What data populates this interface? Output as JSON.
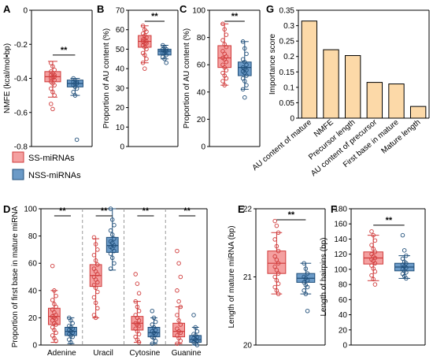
{
  "colors": {
    "ss_fill": "#f4a0a0",
    "ss_edge": "#d03a3a",
    "nss_fill": "#6b9ac7",
    "nss_edge": "#1f4e79",
    "bar_fill": "#fcd9a8",
    "axis": "#000000",
    "dash": "#999999"
  },
  "legend": {
    "ss_label": "SS-miRNAs",
    "nss_label": "NSS-miRNAs"
  },
  "chart_data": [
    {
      "panel": "A",
      "type": "box",
      "ylabel": "NMFE (kcal/mol•bp)",
      "yticks": [
        -0.8,
        -0.6,
        -0.4,
        -0.2,
        0
      ],
      "ylim": [
        -0.8,
        0
      ],
      "significance": "**",
      "series": [
        {
          "name": "SS-miRNAs",
          "q1": -0.42,
          "median": -0.39,
          "q3": -0.36,
          "whisker_low": -0.51,
          "whisker_high": -0.3,
          "points": [
            -0.31,
            -0.33,
            -0.35,
            -0.36,
            -0.37,
            -0.38,
            -0.38,
            -0.39,
            -0.39,
            -0.4,
            -0.4,
            -0.41,
            -0.42,
            -0.43,
            -0.44,
            -0.46,
            -0.48,
            -0.5,
            -0.55,
            -0.58
          ]
        },
        {
          "name": "NSS-miRNAs",
          "q1": -0.45,
          "median": -0.43,
          "q3": -0.41,
          "whisker_low": -0.5,
          "whisker_high": -0.4,
          "points": [
            -0.4,
            -0.41,
            -0.42,
            -0.42,
            -0.43,
            -0.43,
            -0.44,
            -0.45,
            -0.46,
            -0.48,
            -0.5,
            -0.76
          ]
        }
      ]
    },
    {
      "panel": "B",
      "type": "box",
      "ylabel": "Proportion of AU content (%)",
      "yticks": [
        0,
        10,
        20,
        30,
        40,
        50,
        60,
        70
      ],
      "ylim": [
        0,
        70
      ],
      "significance": "**",
      "series": [
        {
          "name": "SS-miRNAs",
          "q1": 51,
          "median": 54,
          "q3": 57,
          "whisker_low": 43,
          "whisker_high": 62,
          "points": [
            62,
            60,
            59,
            58,
            57,
            56,
            55,
            55,
            54,
            54,
            53,
            53,
            52,
            51,
            50,
            48,
            47,
            45,
            43,
            40
          ]
        },
        {
          "name": "NSS-miRNAs",
          "q1": 47,
          "median": 49,
          "q3": 50,
          "whisker_low": 45,
          "whisker_high": 52,
          "points": [
            52,
            51,
            50,
            50,
            49,
            49,
            48,
            48,
            47,
            46,
            45,
            43
          ]
        }
      ]
    },
    {
      "panel": "C",
      "type": "box",
      "ylabel": "Proportion of AU content (%)",
      "yticks": [
        0,
        20,
        40,
        60,
        80,
        100
      ],
      "ylim": [
        0,
        100
      ],
      "significance": "**",
      "series": [
        {
          "name": "SS-miRNAs",
          "q1": 58,
          "median": 65,
          "q3": 74,
          "whisker_low": 45,
          "whisker_high": 90,
          "points": [
            90,
            86,
            82,
            78,
            75,
            73,
            70,
            68,
            66,
            65,
            64,
            62,
            60,
            58,
            56,
            54,
            52,
            50,
            48,
            45
          ]
        },
        {
          "name": "NSS-miRNAs",
          "q1": 52,
          "median": 58,
          "q3": 62,
          "whisker_low": 42,
          "whisker_high": 77,
          "points": [
            77,
            72,
            68,
            64,
            62,
            60,
            58,
            57,
            56,
            55,
            54,
            52,
            50,
            48,
            45,
            42,
            36
          ]
        }
      ]
    },
    {
      "panel": "G",
      "type": "bar",
      "ylabel": "Importance score",
      "categories": [
        "AU content of mature",
        "NMFE",
        "Precursor length",
        "AU content of precursor",
        "First base in mature",
        "Mature length"
      ],
      "values": [
        0.315,
        0.222,
        0.203,
        0.116,
        0.111,
        0.038
      ],
      "yticks": [
        0,
        0.05,
        0.1,
        0.15,
        0.2,
        0.25,
        0.3,
        0.35
      ],
      "ylim": [
        0,
        0.35
      ]
    },
    {
      "panel": "D",
      "type": "box",
      "ylabel": "Proportion of first base in mature miRNA",
      "yticks": [
        0,
        20,
        40,
        60,
        80,
        100
      ],
      "ylim": [
        0,
        100
      ],
      "categories": [
        "Adenine",
        "Uracil",
        "Cytosine",
        "Guanine"
      ],
      "significance": [
        "**",
        "**",
        "**",
        "**"
      ],
      "groups": [
        {
          "ss": {
            "q1": 15,
            "median": 21,
            "q3": 27,
            "whisker_low": 2,
            "whisker_high": 40,
            "points": [
              58,
              40,
              36,
              33,
              30,
              28,
              26,
              24,
              22,
              21,
              20,
              19,
              18,
              16,
              15,
              13,
              11,
              9,
              7,
              5,
              3
            ]
          },
          "nss": {
            "q1": 7,
            "median": 10,
            "q3": 13,
            "whisker_low": 1,
            "whisker_high": 20,
            "points": [
              20,
              18,
              16,
              14,
              13,
              12,
              11,
              10,
              9,
              8,
              7,
              6,
              4,
              2
            ]
          }
        },
        {
          "ss": {
            "q1": 43,
            "median": 51,
            "q3": 59,
            "whisker_low": 20,
            "whisker_high": 78,
            "points": [
              79,
              74,
              70,
              66,
              62,
              59,
              56,
              54,
              52,
              50,
              48,
              46,
              44,
              42,
              39,
              35,
              31,
              27,
              22,
              20
            ]
          },
          "nss": {
            "q1": 68,
            "median": 73,
            "q3": 79,
            "whisker_low": 55,
            "whisker_high": 100,
            "points": [
              100,
              92,
              88,
              84,
              81,
              78,
              76,
              75,
              73,
              72,
              71,
              69,
              67,
              64,
              60,
              56
            ]
          }
        },
        {
          "ss": {
            "q1": 11,
            "median": 16,
            "q3": 21,
            "whisker_low": 2,
            "whisker_high": 32,
            "points": [
              52,
              45,
              38,
              32,
              28,
              25,
              22,
              20,
              18,
              16,
              15,
              14,
              12,
              10,
              8,
              6,
              4,
              2
            ]
          },
          "nss": {
            "q1": 6,
            "median": 9,
            "q3": 13,
            "whisker_low": 1,
            "whisker_high": 20,
            "points": [
              25,
              20,
              17,
              15,
              13,
              11,
              10,
              9,
              8,
              6,
              5,
              3,
              1
            ]
          }
        },
        {
          "ss": {
            "q1": 6,
            "median": 10,
            "q3": 16,
            "whisker_low": 1,
            "whisker_high": 28,
            "points": [
              69,
              60,
              50,
              40,
              32,
              28,
              22,
              18,
              15,
              12,
              10,
              9,
              7,
              5,
              3,
              1
            ]
          },
          "nss": {
            "q1": 2,
            "median": 4,
            "q3": 7,
            "whisker_low": 0,
            "whisker_high": 13,
            "points": [
              22,
              13,
              10,
              8,
              7,
              6,
              5,
              4,
              3,
              2,
              1,
              0
            ]
          }
        }
      ]
    },
    {
      "panel": "E",
      "type": "box",
      "ylabel": "Length of mature miRNA (bp)",
      "yticks": [
        20,
        21,
        22
      ],
      "ylim": [
        20,
        22
      ],
      "significance": "**",
      "series": [
        {
          "name": "SS-miRNAs",
          "q1": 21.05,
          "median": 21.2,
          "q3": 21.38,
          "whisker_low": 20.75,
          "whisker_high": 21.65,
          "points": [
            21.82,
            21.75,
            21.65,
            21.55,
            21.45,
            21.38,
            21.3,
            21.25,
            21.2,
            21.15,
            21.1,
            21.05,
            21.0,
            20.95,
            20.9,
            20.85,
            20.8,
            20.75
          ]
        },
        {
          "name": "NSS-miRNAs",
          "q1": 20.92,
          "median": 20.98,
          "q3": 21.05,
          "whisker_low": 20.75,
          "whisker_high": 21.2,
          "points": [
            21.2,
            21.12,
            21.05,
            21.0,
            20.98,
            20.95,
            20.92,
            20.88,
            20.85,
            20.8,
            20.75,
            20.5
          ]
        }
      ]
    },
    {
      "panel": "F",
      "type": "box",
      "ylabel": "Length of hairpins (bp)",
      "yticks": [
        0,
        20,
        40,
        60,
        80,
        100,
        120,
        140,
        160,
        180
      ],
      "ylim": [
        0,
        180
      ],
      "significance": "**",
      "series": [
        {
          "name": "SS-miRNAs",
          "q1": 107,
          "median": 115,
          "q3": 123,
          "whisker_low": 85,
          "whisker_high": 145,
          "points": [
            150,
            145,
            138,
            132,
            127,
            123,
            120,
            117,
            115,
            113,
            111,
            108,
            105,
            101,
            97,
            92,
            87,
            80
          ]
        },
        {
          "name": "NSS-miRNAs",
          "q1": 98,
          "median": 103,
          "q3": 108,
          "whisker_low": 88,
          "whisker_high": 118,
          "points": [
            145,
            125,
            118,
            114,
            110,
            108,
            106,
            104,
            102,
            100,
            98,
            96,
            94,
            91,
            88
          ]
        }
      ]
    }
  ]
}
